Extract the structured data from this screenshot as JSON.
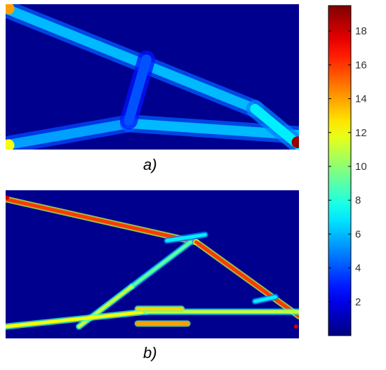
{
  "figure": {
    "panels": [
      {
        "label": "a)"
      },
      {
        "label": "b)"
      }
    ]
  },
  "chart_data": [
    {
      "type": "heatmap",
      "panel": "a)",
      "title": "",
      "xlabel": "",
      "ylabel": "",
      "colormap": "jet",
      "clim": [
        0,
        19.5
      ],
      "description_of_values": "smooth member fields with mid-range values",
      "members": [
        {
          "from": [
            0,
            0.03
          ],
          "to": [
            0.85,
            0.72
          ],
          "value": 6.0
        },
        {
          "from": [
            0,
            0.97
          ],
          "to": [
            0.42,
            0.82
          ],
          "value": 5.5
        },
        {
          "from": [
            0.42,
            0.82
          ],
          "to": [
            1,
            0.9
          ],
          "value": 6.0
        },
        {
          "from": [
            0.42,
            0.8
          ],
          "to": [
            0.48,
            0.38
          ],
          "value": 4.0
        },
        {
          "from": [
            0.85,
            0.72
          ],
          "to": [
            1,
            0.97
          ],
          "value": 7.0
        }
      ],
      "hotspots": [
        {
          "at": [
            0.01,
            0.03
          ],
          "value": 14
        },
        {
          "at": [
            0.01,
            0.97
          ],
          "value": 12
        },
        {
          "at": [
            0.995,
            0.95
          ],
          "value": 19
        }
      ]
    },
    {
      "type": "heatmap",
      "panel": "b)",
      "title": "",
      "xlabel": "",
      "ylabel": "",
      "colormap": "jet",
      "clim": [
        0,
        19.5
      ],
      "description_of_values": "thin member fields with high values",
      "members": [
        {
          "from": [
            0,
            0.06
          ],
          "to": [
            0.65,
            0.35
          ],
          "value": 16
        },
        {
          "from": [
            0.65,
            0.35
          ],
          "to": [
            1,
            0.85
          ],
          "value": 16
        },
        {
          "from": [
            0.63,
            0.35
          ],
          "to": [
            0.43,
            0.65
          ],
          "value": 9
        },
        {
          "from": [
            0.43,
            0.65
          ],
          "to": [
            0.25,
            0.92
          ],
          "value": 11
        },
        {
          "from": [
            0,
            0.92
          ],
          "to": [
            0.48,
            0.82
          ],
          "value": 12
        },
        {
          "from": [
            0.48,
            0.82
          ],
          "to": [
            1,
            0.82
          ],
          "value": 11
        },
        {
          "from": [
            0.55,
            0.34
          ],
          "to": [
            0.68,
            0.3
          ],
          "value": 7
        },
        {
          "from": [
            0.45,
            0.8
          ],
          "to": [
            0.6,
            0.8
          ],
          "value": 13
        },
        {
          "from": [
            0.45,
            0.9
          ],
          "to": [
            0.62,
            0.9
          ],
          "value": 14
        },
        {
          "from": [
            0.85,
            0.75
          ],
          "to": [
            0.92,
            0.72
          ],
          "value": 7
        }
      ],
      "hotspots": [
        {
          "at": [
            0.005,
            0.05
          ],
          "value": 18
        },
        {
          "at": [
            0.99,
            0.92
          ],
          "value": 18
        }
      ]
    },
    {
      "type": "colorbar",
      "colormap": "jet",
      "range": [
        0,
        19.5
      ],
      "ticks": [
        2,
        4,
        6,
        8,
        10,
        12,
        14,
        16,
        18
      ],
      "tick_labels": [
        "2",
        "4",
        "6",
        "8",
        "10",
        "12",
        "14",
        "16",
        "18"
      ]
    }
  ]
}
